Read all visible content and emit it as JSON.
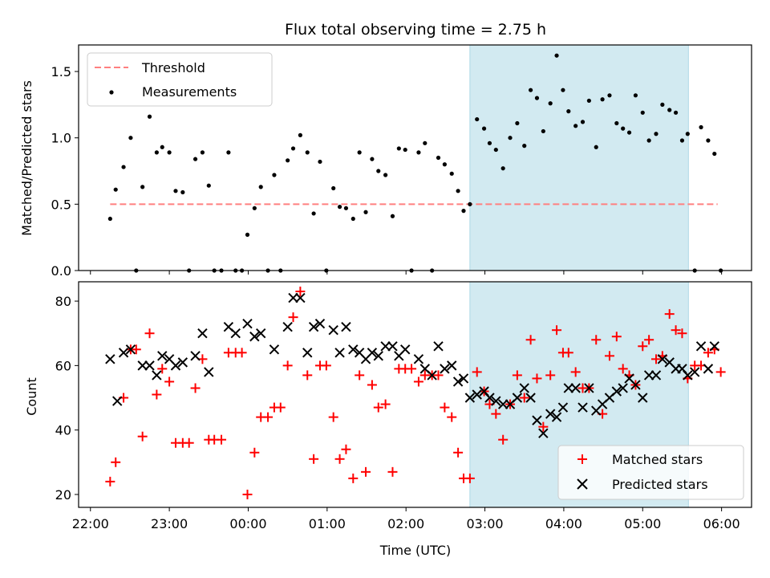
{
  "chart_data": [
    {
      "type": "scatter",
      "title": "Flux total observing time = 2.75 h",
      "ylabel": "Matched/Predicted stars",
      "xlabel": "",
      "x_unit": "hours relative to 00:00 UTC",
      "ylim": [
        0,
        1.7
      ],
      "yticks": [
        0.0,
        0.5,
        1.0,
        1.5
      ],
      "ytick_labels": [
        "0.0",
        "0.5",
        "1.0",
        "1.5"
      ],
      "shaded_interval": [
        2.81,
        5.58
      ],
      "shade_color": "#add8e6",
      "legend": {
        "placement": "upper-left",
        "entries": [
          "Threshold",
          "Measurements"
        ]
      },
      "threshold": {
        "name": "Threshold",
        "value": 0.5,
        "x_range": [
          -1.75,
          5.95
        ],
        "color": "#ff8080",
        "style": "dashed"
      },
      "series": [
        {
          "name": "Measurements",
          "color": "#000000",
          "x": [
            -1.75,
            -1.68,
            -1.58,
            -1.49,
            -1.42,
            -1.34,
            -1.25,
            -1.16,
            -1.09,
            -1.0,
            -0.92,
            -0.83,
            -0.75,
            -0.67,
            -0.58,
            -0.5,
            -0.43,
            -0.34,
            -0.25,
            -0.16,
            -0.08,
            -0.01,
            0.08,
            0.16,
            0.25,
            0.33,
            0.41,
            0.5,
            0.57,
            0.66,
            0.75,
            0.83,
            0.91,
            0.99,
            1.08,
            1.16,
            1.24,
            1.33,
            1.41,
            1.49,
            1.57,
            1.65,
            1.74,
            1.83,
            1.91,
            1.99,
            2.07,
            2.16,
            2.24,
            2.33,
            2.41,
            2.49,
            2.58,
            2.66,
            2.73,
            2.81,
            2.9,
            2.99,
            3.06,
            3.14,
            3.23,
            3.32,
            3.41,
            3.5,
            3.58,
            3.66,
            3.74,
            3.83,
            3.91,
            3.99,
            4.06,
            4.15,
            4.24,
            4.32,
            4.41,
            4.49,
            4.58,
            4.67,
            4.75,
            4.83,
            4.91,
            5.0,
            5.08,
            5.17,
            5.25,
            5.34,
            5.42,
            5.5,
            5.57,
            5.66,
            5.74,
            5.83,
            5.91,
            5.99
          ],
          "y": [
            0.39,
            0.61,
            0.78,
            1.0,
            0.0,
            0.63,
            1.16,
            0.89,
            0.93,
            0.89,
            0.6,
            0.59,
            0.0,
            0.84,
            0.89,
            0.64,
            0.0,
            0.0,
            0.89,
            0.0,
            0.0,
            0.27,
            0.47,
            0.63,
            0.0,
            0.72,
            0.0,
            0.83,
            0.92,
            1.02,
            0.89,
            0.43,
            0.82,
            0.0,
            0.62,
            0.48,
            0.47,
            0.39,
            0.89,
            0.44,
            0.84,
            0.75,
            0.72,
            0.41,
            0.92,
            0.91,
            0.0,
            0.89,
            0.96,
            0.0,
            0.85,
            0.8,
            0.73,
            0.6,
            0.45,
            0.5,
            1.14,
            1.07,
            0.96,
            0.91,
            0.77,
            1.0,
            1.11,
            0.94,
            1.36,
            1.3,
            1.05,
            1.26,
            1.62,
            1.36,
            1.2,
            1.09,
            1.12,
            1.28,
            0.93,
            1.29,
            1.32,
            1.11,
            1.07,
            1.04,
            1.32,
            1.19,
            0.98,
            1.03,
            1.25,
            1.21,
            1.19,
            0.98,
            1.03,
            0.0,
            1.08,
            0.98,
            0.88,
            0.0
          ]
        }
      ]
    },
    {
      "type": "scatter",
      "title": "",
      "ylabel": "Count",
      "xlabel": "Time (UTC)",
      "x_unit": "hours relative to 00:00 UTC",
      "xlim": [
        -2.15,
        6.38
      ],
      "ylim": [
        16,
        86
      ],
      "yticks": [
        20,
        40,
        60,
        80
      ],
      "ytick_labels": [
        "20",
        "40",
        "60",
        "80"
      ],
      "xticks": [
        -2,
        -1,
        0,
        1,
        2,
        3,
        4,
        5,
        6
      ],
      "xtick_labels": [
        "22:00",
        "23:00",
        "00:00",
        "01:00",
        "02:00",
        "03:00",
        "04:00",
        "05:00",
        "06:00"
      ],
      "shaded_interval": [
        2.81,
        5.58
      ],
      "shade_color": "#add8e6",
      "legend": {
        "placement": "lower-right",
        "entries": [
          "Matched stars",
          "Predicted stars"
        ]
      },
      "series": [
        {
          "name": "Matched stars",
          "marker": "+",
          "color": "#ff0000",
          "x": [
            -1.75,
            -1.68,
            -1.58,
            -1.49,
            -1.42,
            -1.34,
            -1.25,
            -1.16,
            -1.09,
            -1.0,
            -0.92,
            -0.83,
            -0.75,
            -0.67,
            -0.58,
            -0.5,
            -0.43,
            -0.34,
            -0.25,
            -0.16,
            -0.08,
            -0.01,
            0.08,
            0.16,
            0.25,
            0.33,
            0.41,
            0.5,
            0.57,
            0.66,
            0.75,
            0.83,
            0.91,
            0.99,
            1.08,
            1.16,
            1.24,
            1.33,
            1.41,
            1.49,
            1.57,
            1.65,
            1.74,
            1.83,
            1.91,
            1.99,
            2.07,
            2.16,
            2.24,
            2.33,
            2.41,
            2.49,
            2.58,
            2.66,
            2.73,
            2.81,
            2.9,
            2.99,
            3.06,
            3.14,
            3.23,
            3.32,
            3.41,
            3.5,
            3.58,
            3.66,
            3.74,
            3.83,
            3.91,
            3.99,
            4.06,
            4.15,
            4.24,
            4.32,
            4.41,
            4.49,
            4.58,
            4.67,
            4.75,
            4.83,
            4.91,
            5.0,
            5.08,
            5.17,
            5.25,
            5.34,
            5.42,
            5.5,
            5.57,
            5.66,
            5.74,
            5.83,
            5.91,
            5.99
          ],
          "y": [
            24,
            30,
            50,
            65,
            65,
            38,
            70,
            51,
            59,
            55,
            36,
            36,
            36,
            53,
            62,
            37,
            37,
            37,
            64,
            64,
            64,
            20,
            33,
            44,
            44,
            47,
            47,
            60,
            75,
            83,
            57,
            31,
            60,
            60,
            44,
            31,
            34,
            25,
            57,
            27,
            54,
            47,
            48,
            27,
            59,
            59,
            59,
            55,
            57,
            57,
            57,
            47,
            44,
            33,
            25,
            25,
            58,
            52,
            48,
            45,
            37,
            48,
            57,
            50,
            68,
            56,
            41,
            57,
            71,
            64,
            64,
            58,
            53,
            53,
            68,
            45,
            63,
            69,
            59,
            57,
            54,
            66,
            68,
            62,
            63,
            76,
            71,
            70,
            56,
            60,
            60,
            64,
            65,
            58
          ]
        },
        {
          "name": "Predicted stars",
          "marker": "x",
          "color": "#000000",
          "x": [
            -1.75,
            -1.66,
            -1.58,
            -1.49,
            -1.34,
            -1.25,
            -1.16,
            -1.09,
            -1.0,
            -0.92,
            -0.83,
            -0.67,
            -0.58,
            -0.5,
            -0.25,
            -0.16,
            -0.01,
            0.08,
            0.16,
            0.33,
            0.5,
            0.57,
            0.66,
            0.75,
            0.83,
            0.91,
            1.08,
            1.16,
            1.24,
            1.33,
            1.41,
            1.49,
            1.57,
            1.65,
            1.74,
            1.83,
            1.91,
            1.99,
            2.16,
            2.24,
            2.33,
            2.41,
            2.49,
            2.58,
            2.66,
            2.73,
            2.81,
            2.9,
            2.99,
            3.06,
            3.14,
            3.23,
            3.32,
            3.41,
            3.5,
            3.58,
            3.66,
            3.74,
            3.83,
            3.91,
            3.99,
            4.06,
            4.15,
            4.24,
            4.32,
            4.41,
            4.49,
            4.58,
            4.67,
            4.75,
            4.83,
            4.91,
            5.0,
            5.08,
            5.17,
            5.25,
            5.34,
            5.42,
            5.5,
            5.57,
            5.66,
            5.74,
            5.83,
            5.91
          ],
          "y": [
            62,
            49,
            64,
            65,
            60,
            60,
            57,
            63,
            62,
            60,
            61,
            63,
            70,
            58,
            72,
            70,
            73,
            69,
            70,
            65,
            72,
            81,
            81,
            64,
            72,
            73,
            71,
            64,
            72,
            65,
            64,
            62,
            64,
            63,
            66,
            66,
            63,
            65,
            62,
            59,
            57,
            66,
            59,
            60,
            55,
            56,
            50,
            51,
            52,
            50,
            49,
            48,
            48,
            50,
            53,
            50,
            43,
            39,
            45,
            44,
            47,
            53,
            53,
            47,
            53,
            46,
            48,
            50,
            52,
            53,
            56,
            54,
            50,
            57,
            57,
            62,
            61,
            59,
            59,
            57,
            58,
            66,
            59,
            66
          ]
        }
      ]
    }
  ]
}
